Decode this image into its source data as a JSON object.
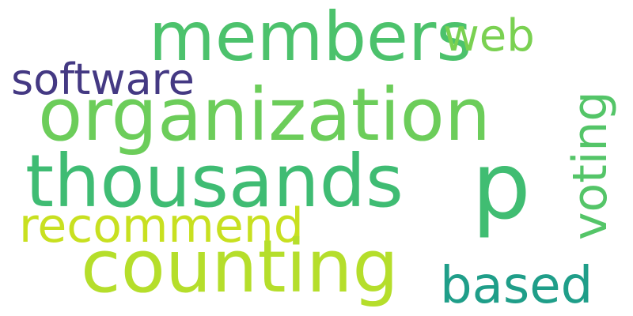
{
  "words": [
    {
      "text": "members",
      "color": "#4cc26c"
    },
    {
      "text": "web",
      "color": "#7ad151"
    },
    {
      "text": "software",
      "color": "#443983"
    },
    {
      "text": "organization",
      "color": "#6ccd5a"
    },
    {
      "text": "voting",
      "color": "#54c568"
    },
    {
      "text": "p",
      "color": "#40bd72"
    },
    {
      "text": "thousands",
      "color": "#3fbc73"
    },
    {
      "text": "recommend",
      "color": "#c8e020"
    },
    {
      "text": "counting",
      "color": "#b5de2b"
    },
    {
      "text": "based",
      "color": "#1f9e89"
    }
  ]
}
